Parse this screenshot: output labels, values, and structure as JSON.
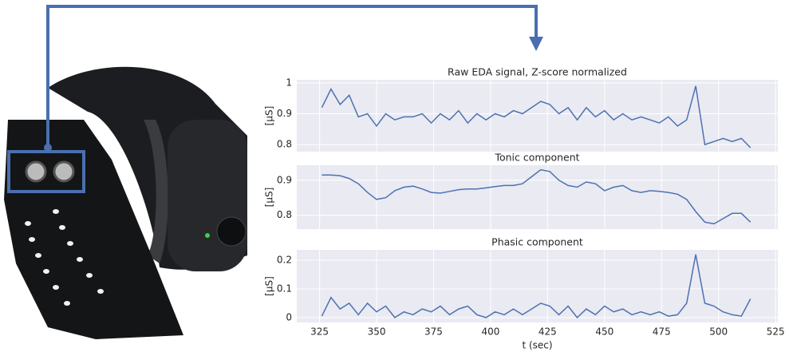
{
  "chart_data": [
    {
      "type": "line",
      "title": "Raw EDA signal, Z-score normalized",
      "ylabel": "[µS]",
      "x": [
        326,
        330,
        334,
        338,
        342,
        346,
        350,
        354,
        358,
        362,
        366,
        370,
        374,
        378,
        382,
        386,
        390,
        394,
        398,
        402,
        406,
        410,
        414,
        418,
        422,
        426,
        430,
        434,
        438,
        442,
        446,
        450,
        454,
        458,
        462,
        466,
        470,
        474,
        478,
        482,
        486,
        490,
        494,
        498,
        502,
        506,
        510,
        514
      ],
      "series": [
        {
          "color": "#4c72b0",
          "values": [
            0.92,
            0.98,
            0.93,
            0.96,
            0.89,
            0.9,
            0.86,
            0.9,
            0.88,
            0.89,
            0.89,
            0.9,
            0.87,
            0.9,
            0.88,
            0.91,
            0.87,
            0.9,
            0.88,
            0.9,
            0.89,
            0.91,
            0.9,
            0.92,
            0.94,
            0.93,
            0.9,
            0.92,
            0.88,
            0.92,
            0.89,
            0.91,
            0.88,
            0.9,
            0.88,
            0.89,
            0.88,
            0.87,
            0.89,
            0.86,
            0.88,
            0.99,
            0.8,
            0.81,
            0.82,
            0.81,
            0.82,
            0.79
          ]
        }
      ],
      "xlim": [
        315,
        526
      ],
      "ylim": [
        0.777,
        1.01
      ],
      "yticks": [
        0.8,
        0.9,
        1.0
      ],
      "grid": true
    },
    {
      "type": "line",
      "title": "Tonic component",
      "ylabel": "[µS]",
      "x": [
        326,
        330,
        334,
        338,
        342,
        346,
        350,
        354,
        358,
        362,
        366,
        370,
        374,
        378,
        382,
        386,
        390,
        394,
        398,
        402,
        406,
        410,
        414,
        418,
        422,
        426,
        430,
        434,
        438,
        442,
        446,
        450,
        454,
        458,
        462,
        466,
        470,
        474,
        478,
        482,
        486,
        490,
        494,
        498,
        502,
        506,
        510,
        514
      ],
      "series": [
        {
          "color": "#4c72b0",
          "values": [
            0.915,
            0.915,
            0.913,
            0.905,
            0.89,
            0.865,
            0.845,
            0.85,
            0.87,
            0.88,
            0.883,
            0.875,
            0.865,
            0.863,
            0.868,
            0.873,
            0.875,
            0.875,
            0.878,
            0.882,
            0.885,
            0.885,
            0.89,
            0.91,
            0.93,
            0.925,
            0.9,
            0.885,
            0.88,
            0.895,
            0.89,
            0.87,
            0.88,
            0.885,
            0.87,
            0.865,
            0.87,
            0.868,
            0.865,
            0.86,
            0.845,
            0.81,
            0.78,
            0.775,
            0.79,
            0.805,
            0.805,
            0.78
          ]
        }
      ],
      "xlim": [
        315,
        526
      ],
      "ylim": [
        0.76,
        0.943
      ],
      "yticks": [
        0.8,
        0.9
      ],
      "grid": true
    },
    {
      "type": "line",
      "title": "Phasic component",
      "ylabel": "[µS]",
      "xlabel": "t (sec)",
      "x": [
        326,
        330,
        334,
        338,
        342,
        346,
        350,
        354,
        358,
        362,
        366,
        370,
        374,
        378,
        382,
        386,
        390,
        394,
        398,
        402,
        406,
        410,
        414,
        418,
        422,
        426,
        430,
        434,
        438,
        442,
        446,
        450,
        454,
        458,
        462,
        466,
        470,
        474,
        478,
        482,
        486,
        490,
        494,
        498,
        502,
        506,
        510,
        514
      ],
      "series": [
        {
          "color": "#4c72b0",
          "values": [
            0.005,
            0.07,
            0.03,
            0.05,
            0.01,
            0.05,
            0.02,
            0.04,
            0.0,
            0.02,
            0.01,
            0.03,
            0.02,
            0.04,
            0.01,
            0.03,
            0.04,
            0.01,
            0.0,
            0.02,
            0.01,
            0.03,
            0.01,
            0.03,
            0.05,
            0.04,
            0.01,
            0.04,
            0.0,
            0.03,
            0.01,
            0.04,
            0.02,
            0.03,
            0.01,
            0.02,
            0.01,
            0.02,
            0.005,
            0.01,
            0.05,
            0.22,
            0.05,
            0.04,
            0.02,
            0.01,
            0.005,
            0.065
          ]
        }
      ],
      "xlim": [
        315,
        526
      ],
      "ylim": [
        -0.017,
        0.236
      ],
      "xticks": [
        325,
        350,
        375,
        400,
        425,
        450,
        475,
        500,
        525
      ],
      "yticks": [
        0.0,
        0.1,
        0.2
      ],
      "grid": true
    }
  ]
}
